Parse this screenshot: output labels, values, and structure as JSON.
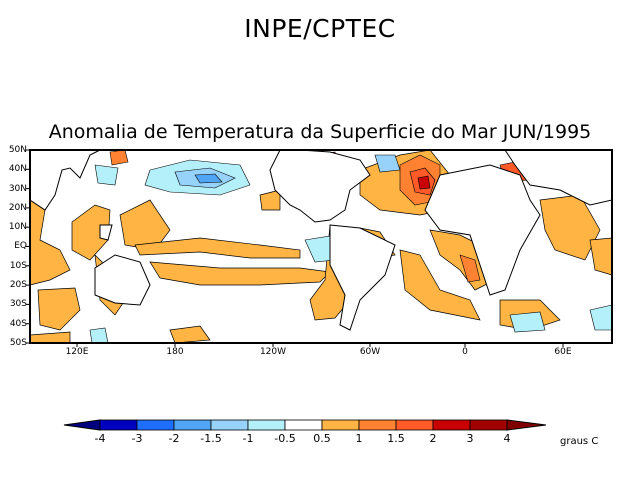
{
  "header": {
    "title": "INPE/CPTEC"
  },
  "map": {
    "title": "Anomalia de Temperatura da Superficie do Mar JUN/1995",
    "lat_labels": [
      "50N",
      "40N",
      "30N",
      "20N",
      "10N",
      "EQ",
      "10S",
      "20S",
      "30S",
      "40S",
      "50S"
    ],
    "lon_labels": [
      "120E",
      "180",
      "120W",
      "60W",
      "0",
      "60E"
    ]
  },
  "colorbar": {
    "units": "graus C",
    "labels": [
      "-4",
      "-3",
      "-2",
      "-1.5",
      "-1",
      "-0.5",
      "0.5",
      "1",
      "1.5",
      "2",
      "3",
      "4"
    ],
    "colors": [
      "#000080",
      "#0000c0",
      "#1e6eff",
      "#50a5f5",
      "#96d2fa",
      "#b4f0fa",
      "#ffffff",
      "#ffb443",
      "#ff8232",
      "#ff5a28",
      "#c80000",
      "#a00000",
      "#800000"
    ]
  }
}
